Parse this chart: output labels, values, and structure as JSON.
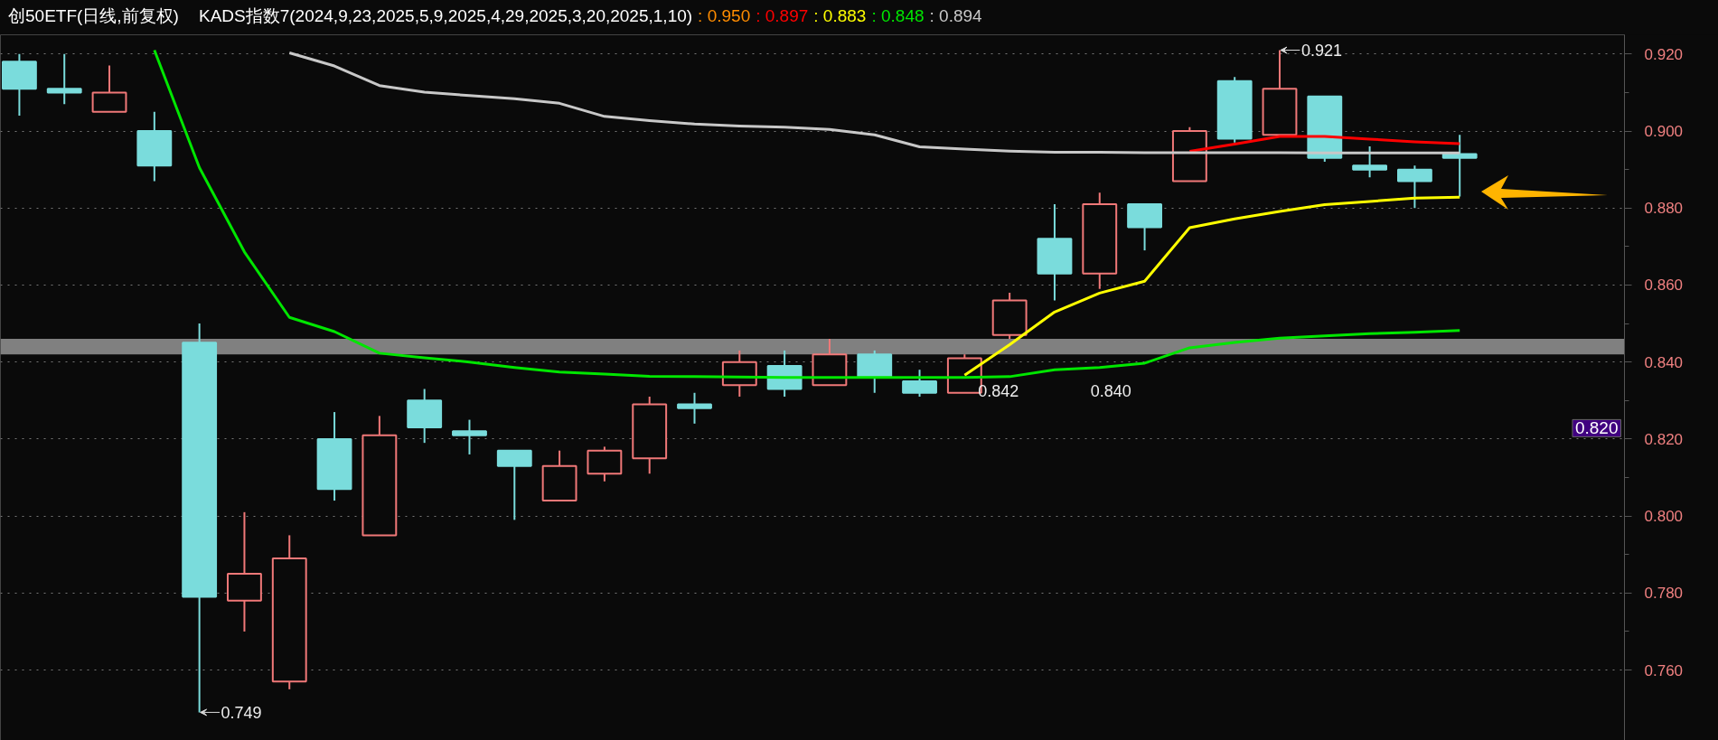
{
  "chart_data": {
    "type": "candlestick",
    "title": "创50ETF(日线,前复权)",
    "subtitle": "KADS指数7(2024,9,23,2025,5,9,2025,4,29,2025,3,20,2025,1,10)",
    "categories": [
      null,
      null,
      null,
      null,
      null,
      null,
      null,
      null,
      null,
      null,
      null,
      null,
      null,
      null,
      null,
      null,
      null,
      null,
      null,
      null,
      null,
      null,
      null,
      null,
      null,
      null,
      null,
      null,
      null,
      null,
      null,
      null,
      null
    ],
    "ohlc": [
      [
        0.918,
        0.92,
        0.904,
        0.911
      ],
      [
        0.911,
        0.92,
        0.907,
        0.91
      ],
      [
        0.905,
        0.917,
        0.905,
        0.91
      ],
      [
        0.9,
        0.905,
        0.887,
        0.891
      ],
      [
        0.845,
        0.85,
        0.749,
        0.779
      ],
      [
        0.778,
        0.801,
        0.77,
        0.785
      ],
      [
        0.757,
        0.795,
        0.755,
        0.789
      ],
      [
        0.82,
        0.827,
        0.804,
        0.807
      ],
      [
        0.795,
        0.826,
        0.795,
        0.821
      ],
      [
        0.83,
        0.833,
        0.819,
        0.823
      ],
      [
        0.822,
        0.825,
        0.816,
        0.821
      ],
      [
        0.817,
        0.817,
        0.799,
        0.813
      ],
      [
        0.804,
        0.817,
        0.804,
        0.813
      ],
      [
        0.811,
        0.818,
        0.809,
        0.817
      ],
      [
        0.815,
        0.831,
        0.811,
        0.829
      ],
      [
        0.829,
        0.832,
        0.824,
        0.828
      ],
      [
        0.834,
        0.843,
        0.831,
        0.84
      ],
      [
        0.839,
        0.843,
        0.831,
        0.833
      ],
      [
        0.834,
        0.846,
        0.834,
        0.842
      ],
      [
        0.842,
        0.843,
        0.832,
        0.836
      ],
      [
        0.835,
        0.838,
        0.831,
        0.832
      ],
      [
        0.832,
        0.842,
        0.832,
        0.841
      ],
      [
        0.847,
        0.858,
        0.846,
        0.856
      ],
      [
        0.872,
        0.881,
        0.856,
        0.863
      ],
      [
        0.863,
        0.884,
        0.859,
        0.881
      ],
      [
        0.881,
        0.881,
        0.869,
        0.875
      ],
      [
        0.887,
        0.901,
        0.887,
        0.9
      ],
      [
        0.913,
        0.914,
        0.897,
        0.898
      ],
      [
        0.899,
        0.921,
        0.899,
        0.911
      ],
      [
        0.909,
        0.909,
        0.892,
        0.893
      ],
      [
        0.891,
        0.896,
        0.888,
        0.89
      ],
      [
        0.89,
        0.891,
        0.88,
        0.887
      ],
      [
        0.894,
        0.899,
        0.883,
        0.893
      ]
    ],
    "colors": [
      "#7adcdc",
      "#7adcdc",
      "#f07878",
      "#7adcdc",
      "#7adcdc",
      "#f07878",
      "#f07878",
      "#7adcdc",
      "#f07878",
      "#7adcdc",
      "#7adcdc",
      "#7adcdc",
      "#f07878",
      "#f07878",
      "#f07878",
      "#7adcdc",
      "#f07878",
      "#7adcdc",
      "#f07878",
      "#7adcdc",
      "#7adcdc",
      "#f07878",
      "#f07878",
      "#7adcdc",
      "#f07878",
      "#7adcdc",
      "#f07878",
      "#7adcdc",
      "#f07878",
      "#7adcdc",
      "#7adcdc",
      "#7adcdc",
      "#7adcdc"
    ],
    "series": [
      {
        "name": ": 0.950",
        "type": "line",
        "color": "#ff8c00",
        "values": [
          null,
          null,
          null,
          null,
          null,
          null,
          null,
          null,
          null,
          null,
          null,
          null,
          null,
          null,
          null,
          null,
          null,
          null,
          null,
          null,
          null,
          null,
          null,
          null,
          null,
          null,
          null,
          null,
          null,
          null,
          null,
          null,
          null
        ]
      },
      {
        "name": ": 0.897",
        "type": "line",
        "color": "#ff0000",
        "values": [
          null,
          null,
          null,
          null,
          null,
          null,
          null,
          null,
          null,
          null,
          null,
          null,
          null,
          null,
          null,
          null,
          null,
          null,
          null,
          null,
          null,
          null,
          null,
          null,
          null,
          null,
          0.8947,
          0.8966,
          0.8986,
          0.8986,
          0.8979,
          0.8972,
          0.8967
        ]
      },
      {
        "name": ": 0.883",
        "type": "line",
        "color": "#ffff00",
        "values": [
          null,
          null,
          null,
          null,
          null,
          null,
          null,
          null,
          null,
          null,
          null,
          null,
          null,
          null,
          null,
          null,
          null,
          null,
          null,
          null,
          null,
          0.8366,
          0.8445,
          0.853,
          0.8579,
          0.861,
          0.8749,
          0.8772,
          0.8791,
          0.8809,
          0.8817,
          0.8826,
          0.8828
        ]
      },
      {
        "name": ": 0.848",
        "type": "line",
        "color": "#00e600",
        "values": [
          null,
          null,
          null,
          0.921,
          0.8905,
          0.8686,
          0.8516,
          0.8479,
          0.8423,
          0.8411,
          0.84,
          0.8386,
          0.8374,
          0.8369,
          0.8363,
          0.8362,
          0.8361,
          0.836,
          0.836,
          0.836,
          0.836,
          0.836,
          0.8362,
          0.838,
          0.8386,
          0.8397,
          0.8437,
          0.8451,
          0.8462,
          0.8468,
          0.8474,
          0.8477,
          0.8482
        ]
      },
      {
        "name": ": 0.894",
        "type": "line",
        "color": "#c8c8c8",
        "values": [
          null,
          null,
          null,
          null,
          null,
          null,
          0.9203,
          0.9169,
          0.9118,
          0.9101,
          0.9092,
          0.9084,
          0.9072,
          0.9038,
          0.9027,
          0.9018,
          0.9013,
          0.901,
          0.9004,
          0.899,
          0.8959,
          0.8953,
          0.8948,
          0.8945,
          0.8945,
          0.8944,
          0.8944,
          0.8944,
          0.8944,
          0.8943,
          0.8943,
          0.8943,
          0.8943
        ]
      }
    ],
    "bands": [
      {
        "axis": "y",
        "from": 0.842,
        "to": 0.846,
        "color": "#808080"
      }
    ],
    "ylim": [
      0.741,
      0.925
    ],
    "yticks": [
      {
        "value": 0.76,
        "label": "0.760"
      },
      {
        "value": 0.78,
        "label": "0.780"
      },
      {
        "value": 0.8,
        "label": "0.800"
      },
      {
        "value": 0.82,
        "label": "0.820"
      },
      {
        "value": 0.84,
        "label": "0.840"
      },
      {
        "value": 0.86,
        "label": "0.860"
      },
      {
        "value": 0.88,
        "label": "0.880"
      },
      {
        "value": 0.9,
        "label": "0.900"
      },
      {
        "value": 0.92,
        "label": "0.920"
      }
    ],
    "tick_labels": "y",
    "grid": "y",
    "legend": "top",
    "annotations": [
      "0.749",
      "0.921",
      "0.820",
      "0.842",
      "0.840"
    ]
  }
}
